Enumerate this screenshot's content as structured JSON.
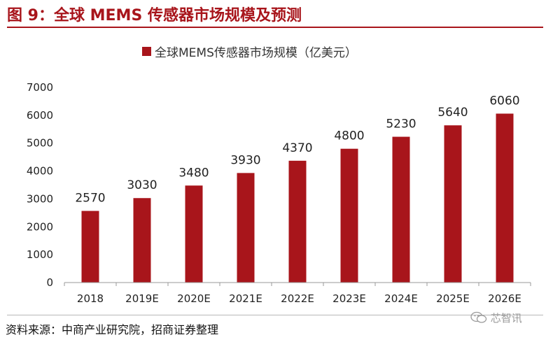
{
  "figure": {
    "title": "图 9：全球 MEMS 传感器市场规模及预测",
    "source": "资料来源：中商产业研究院，招商证券整理",
    "watermark": "芯智讯",
    "wechat_icon": "wechat-icon"
  },
  "colors": {
    "accent": "#a8151b",
    "bar": "#a8151b",
    "axis": "#999999",
    "text": "#111111"
  },
  "chart_data": {
    "type": "bar",
    "title": "",
    "legend": {
      "label": "全球MEMS传感器市场规模（亿美元）",
      "position": "top"
    },
    "categories": [
      "2018",
      "2019E",
      "2020E",
      "2021E",
      "2022E",
      "2023E",
      "2024E",
      "2025E",
      "2026E"
    ],
    "series": [
      {
        "name": "全球MEMS传感器市场规模（亿美元）",
        "values": [
          2570,
          3030,
          3480,
          3930,
          4370,
          4800,
          5230,
          5640,
          6060
        ]
      }
    ],
    "data_labels": [
      "2570",
      "3030",
      "3480",
      "3930",
      "4370",
      "4800",
      "5230",
      "5640",
      "6060"
    ],
    "yticks": [
      0,
      1000,
      2000,
      3000,
      4000,
      5000,
      6000,
      7000
    ],
    "ylim": [
      0,
      7000
    ],
    "xlabel": "",
    "ylabel": "",
    "grid": false
  }
}
